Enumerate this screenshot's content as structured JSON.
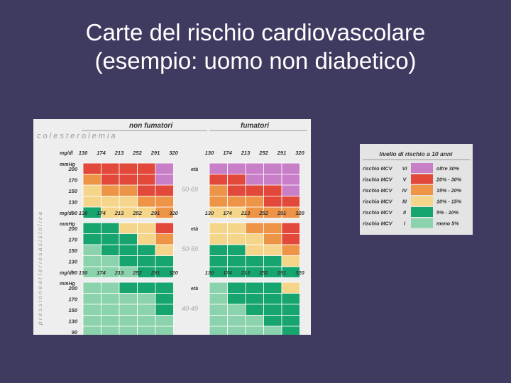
{
  "slide": {
    "title_line1": "Carte del rischio cardiovascolare",
    "title_line2": "(esempio: uomo non diabetico)"
  },
  "chart": {
    "header_nonsmokers": "non fumatori",
    "header_smokers": "fumatori",
    "cholesterol_label": "c o l e s t e r o l e m i a",
    "bp_label": "p r e s s i o n e   a r t e r i o s a   s i s t o l i c a",
    "col_unit": "mg/dl",
    "row_unit": "mmHg",
    "eta_label": "età",
    "cholesterol_levels": [
      "130",
      "174",
      "213",
      "252",
      "291",
      "320"
    ],
    "bp_levels": [
      "200",
      "170",
      "150",
      "130",
      "90"
    ],
    "colors": {
      "VI": "#c97ec8",
      "V": "#e2493a",
      "IV": "#ee9447",
      "III": "#f5d58a",
      "II": "#16a56e",
      "I": "#8bd3ac"
    },
    "age_groups": [
      {
        "label": "60-69",
        "nonsmoker": [
          [
            "V",
            "V",
            "V",
            "V",
            "VI"
          ],
          [
            "IV",
            "V",
            "V",
            "V",
            "VI"
          ],
          [
            "III",
            "IV",
            "IV",
            "V",
            "V"
          ],
          [
            "III",
            "III",
            "III",
            "IV",
            "IV"
          ],
          [
            "II",
            "III",
            "III",
            "III",
            "IV"
          ]
        ],
        "smoker": [
          [
            "VI",
            "VI",
            "VI",
            "VI",
            "VI"
          ],
          [
            "V",
            "V",
            "VI",
            "VI",
            "VI"
          ],
          [
            "IV",
            "V",
            "V",
            "V",
            "VI"
          ],
          [
            "IV",
            "IV",
            "IV",
            "V",
            "V"
          ],
          [
            "III",
            "III",
            "IV",
            "IV",
            "IV"
          ]
        ]
      },
      {
        "label": "50-59",
        "nonsmoker": [
          [
            "II",
            "II",
            "III",
            "III",
            "V"
          ],
          [
            "II",
            "II",
            "II",
            "III",
            "IV"
          ],
          [
            "I",
            "II",
            "II",
            "II",
            "III"
          ],
          [
            "I",
            "I",
            "II",
            "II",
            "II"
          ],
          [
            "I",
            "I",
            "I",
            "II",
            "II"
          ]
        ],
        "smoker": [
          [
            "III",
            "III",
            "IV",
            "IV",
            "V"
          ],
          [
            "III",
            "III",
            "III",
            "IV",
            "V"
          ],
          [
            "II",
            "II",
            "III",
            "III",
            "IV"
          ],
          [
            "II",
            "II",
            "II",
            "II",
            "III"
          ],
          [
            "II",
            "II",
            "II",
            "II",
            "II"
          ]
        ]
      },
      {
        "label": "40-49",
        "nonsmoker": [
          [
            "I",
            "I",
            "II",
            "II",
            "II"
          ],
          [
            "I",
            "I",
            "I",
            "I",
            "II"
          ],
          [
            "I",
            "I",
            "I",
            "I",
            "II"
          ],
          [
            "I",
            "I",
            "I",
            "I",
            "I"
          ],
          [
            "I",
            "I",
            "I",
            "I",
            "I"
          ]
        ],
        "smoker": [
          [
            "I",
            "II",
            "II",
            "II",
            "III"
          ],
          [
            "I",
            "II",
            "II",
            "II",
            "II"
          ],
          [
            "I",
            "I",
            "II",
            "II",
            "II"
          ],
          [
            "I",
            "I",
            "I",
            "II",
            "II"
          ],
          [
            "I",
            "I",
            "I",
            "I",
            "II"
          ]
        ]
      }
    ]
  },
  "legend": {
    "title": "livello di rischio a 10 anni",
    "rows": [
      {
        "label": "rischio MCV",
        "level": "VI",
        "range": "oltre  30%"
      },
      {
        "label": "rischio MCV",
        "level": "V",
        "range": "20% - 30%"
      },
      {
        "label": "rischio MCV",
        "level": "IV",
        "range": "15% - 20%"
      },
      {
        "label": "rischio MCV",
        "level": "III",
        "range": "10% - 15%"
      },
      {
        "label": "rischio MCV",
        "level": "II",
        "range": "5% - 10%"
      },
      {
        "label": "rischio MCV",
        "level": "I",
        "range": "meno   5%"
      }
    ]
  }
}
